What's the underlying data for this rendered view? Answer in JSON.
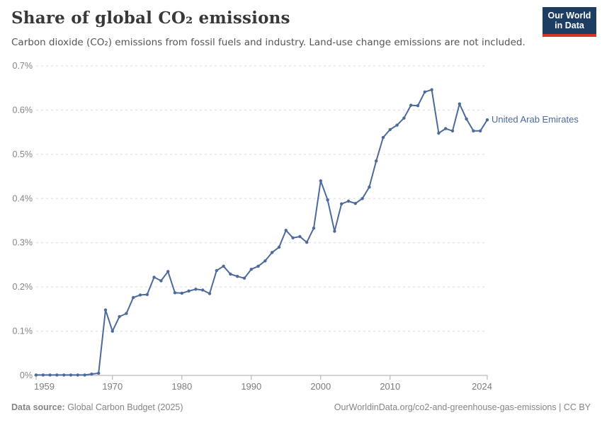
{
  "header": {
    "title": "Share of global CO₂ emissions",
    "subtitle": "Carbon dioxide (CO₂) emissions from fossil fuels and industry. Land-use change emissions are not included."
  },
  "logo": {
    "line1": "Our World",
    "line2": "in Data",
    "bg_color": "#1d3d63",
    "bar_color": "#d6352c"
  },
  "footer": {
    "data_source_label": "Data source:",
    "data_source_value": " Global Carbon Budget (2025)",
    "link_text": "OurWorldinData.org/co2-and-greenhouse-gas-emissions | CC BY"
  },
  "chart_data": {
    "type": "line",
    "title": "Share of global CO₂ emissions",
    "xlabel": "",
    "ylabel": "",
    "unit": "%",
    "ylim": [
      0,
      0.7
    ],
    "grid": "horizontal dashed",
    "legend_position": "end-of-line label",
    "y_ticks": [
      {
        "value": 0.0,
        "label": "0%"
      },
      {
        "value": 0.1,
        "label": "0.1%"
      },
      {
        "value": 0.2,
        "label": "0.2%"
      },
      {
        "value": 0.3,
        "label": "0.3%"
      },
      {
        "value": 0.4,
        "label": "0.4%"
      },
      {
        "value": 0.5,
        "label": "0.5%"
      },
      {
        "value": 0.6,
        "label": "0.6%"
      },
      {
        "value": 0.7,
        "label": "0.7%"
      }
    ],
    "x_ticks": [
      1959,
      1970,
      1980,
      1990,
      2000,
      2010,
      2024
    ],
    "x": [
      1959,
      1960,
      1961,
      1962,
      1963,
      1964,
      1965,
      1966,
      1967,
      1968,
      1969,
      1970,
      1971,
      1972,
      1973,
      1974,
      1975,
      1976,
      1977,
      1978,
      1979,
      1980,
      1981,
      1982,
      1983,
      1984,
      1985,
      1986,
      1987,
      1988,
      1989,
      1990,
      1991,
      1992,
      1993,
      1994,
      1995,
      1996,
      1997,
      1998,
      1999,
      2000,
      2001,
      2002,
      2003,
      2004,
      2005,
      2006,
      2007,
      2008,
      2009,
      2010,
      2011,
      2012,
      2013,
      2014,
      2015,
      2016,
      2017,
      2018,
      2019,
      2020,
      2021,
      2022,
      2023,
      2024
    ],
    "series": [
      {
        "name": "United Arab Emirates",
        "color": "#4C6A9C",
        "values": [
          0.001,
          0.001,
          0.001,
          0.001,
          0.001,
          0.001,
          0.001,
          0.001,
          0.003,
          0.005,
          0.148,
          0.1,
          0.133,
          0.14,
          0.176,
          0.182,
          0.183,
          0.222,
          0.214,
          0.235,
          0.187,
          0.186,
          0.191,
          0.195,
          0.193,
          0.185,
          0.237,
          0.247,
          0.229,
          0.224,
          0.22,
          0.24,
          0.247,
          0.259,
          0.278,
          0.29,
          0.328,
          0.311,
          0.314,
          0.301,
          0.333,
          0.44,
          0.397,
          0.326,
          0.388,
          0.394,
          0.389,
          0.4,
          0.426,
          0.485,
          0.538,
          0.556,
          0.566,
          0.582,
          0.611,
          0.61,
          0.641,
          0.646,
          0.548,
          0.558,
          0.553,
          0.614,
          0.58,
          0.553,
          0.553,
          0.578
        ]
      }
    ]
  }
}
